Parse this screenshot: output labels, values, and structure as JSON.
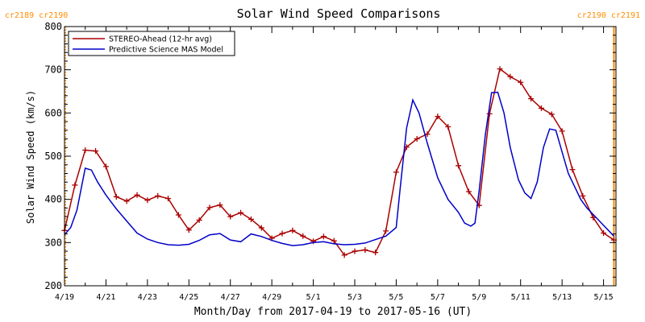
{
  "chart_data": {
    "type": "line",
    "title": "Solar Wind Speed Comparisons",
    "xlabel": "Month/Day from 2017-04-19 to 2017-05-16 (UT)",
    "ylabel": "Solar Wind Speed (km/s)",
    "xlim_days": [
      0,
      26.6
    ],
    "ylim": [
      200,
      800
    ],
    "yticks": [
      200,
      300,
      400,
      500,
      600,
      700,
      800
    ],
    "xticks": [
      {
        "day": 0,
        "label": "4/19"
      },
      {
        "day": 2,
        "label": "4/21"
      },
      {
        "day": 4,
        "label": "4/23"
      },
      {
        "day": 6,
        "label": "4/25"
      },
      {
        "day": 8,
        "label": "4/27"
      },
      {
        "day": 10,
        "label": "4/29"
      },
      {
        "day": 12,
        "label": "5/1"
      },
      {
        "day": 14,
        "label": "5/3"
      },
      {
        "day": 16,
        "label": "5/5"
      },
      {
        "day": 18,
        "label": "5/7"
      },
      {
        "day": 20,
        "label": "5/9"
      },
      {
        "day": 22,
        "label": "5/11"
      },
      {
        "day": 24,
        "label": "5/13"
      },
      {
        "day": 26,
        "label": "5/15"
      }
    ],
    "legend_position": "top-left",
    "rotations": [
      {
        "day": 0.05,
        "labels": "cr2189 cr2190",
        "side": "left",
        "color": "#ff8c00",
        "style": "dotted"
      },
      {
        "day": 26.5,
        "labels": "cr2190 cr2191",
        "side": "right",
        "color": "#ff8c00",
        "style": "solid"
      }
    ],
    "series": [
      {
        "name": "STEREO-Ahead (12-hr avg)",
        "color": "#aa0000",
        "markers": true,
        "x": [
          0,
          0.5,
          1,
          1.5,
          2,
          2.5,
          3,
          3.5,
          4,
          4.5,
          5,
          5.5,
          6,
          6.5,
          7,
          7.5,
          8,
          8.5,
          9,
          9.5,
          10,
          10.5,
          11,
          11.5,
          12,
          12.5,
          13,
          13.5,
          14,
          14.5,
          15,
          15.5,
          16,
          16.5,
          17,
          17.5,
          18,
          18.5,
          19,
          19.5,
          20,
          20.5,
          21,
          21.5,
          22,
          22.5,
          23,
          23.5,
          24,
          24.5,
          25,
          25.5,
          26,
          26.5
        ],
        "values": [
          328,
          433,
          514,
          512,
          476,
          406,
          396,
          410,
          398,
          408,
          402,
          364,
          329,
          352,
          381,
          387,
          360,
          369,
          354,
          334,
          310,
          321,
          328,
          315,
          303,
          314,
          304,
          271,
          280,
          283,
          277,
          327,
          463,
          521,
          540,
          551,
          592,
          568,
          478,
          418,
          386,
          598,
          702,
          684,
          671,
          633,
          611,
          597,
          558,
          469,
          408,
          358,
          322,
          306
        ]
      },
      {
        "name": "Predictive Science MAS Model",
        "color": "#0000c8",
        "markers": false,
        "x": [
          0,
          0.3,
          0.6,
          1,
          1.3,
          1.6,
          2,
          2.5,
          3,
          3.5,
          4,
          4.5,
          5,
          5.5,
          6,
          6.5,
          7,
          7.5,
          8,
          8.5,
          9,
          9.5,
          10,
          10.5,
          11,
          11.5,
          12,
          12.5,
          13,
          13.5,
          14,
          14.5,
          15,
          15.5,
          16,
          16.2,
          16.5,
          16.8,
          17.1,
          17.5,
          18,
          18.5,
          19,
          19.3,
          19.6,
          19.8,
          20,
          20.3,
          20.6,
          20.9,
          21.2,
          21.5,
          21.9,
          22.2,
          22.5,
          22.8,
          23.1,
          23.4,
          23.7,
          24,
          24.3,
          24.6,
          24.9,
          25.2,
          25.6,
          26,
          26.5
        ],
        "values": [
          318,
          335,
          375,
          472,
          468,
          440,
          410,
          378,
          350,
          322,
          308,
          300,
          295,
          294,
          296,
          305,
          318,
          321,
          306,
          302,
          320,
          314,
          305,
          298,
          293,
          295,
          300,
          302,
          297,
          295,
          296,
          299,
          307,
          315,
          335,
          430,
          565,
          630,
          600,
          530,
          450,
          400,
          370,
          345,
          338,
          345,
          420,
          550,
          647,
          648,
          600,
          520,
          445,
          415,
          402,
          440,
          520,
          563,
          560,
          510,
          460,
          430,
          400,
          380,
          360,
          340,
          315
        ]
      }
    ]
  }
}
